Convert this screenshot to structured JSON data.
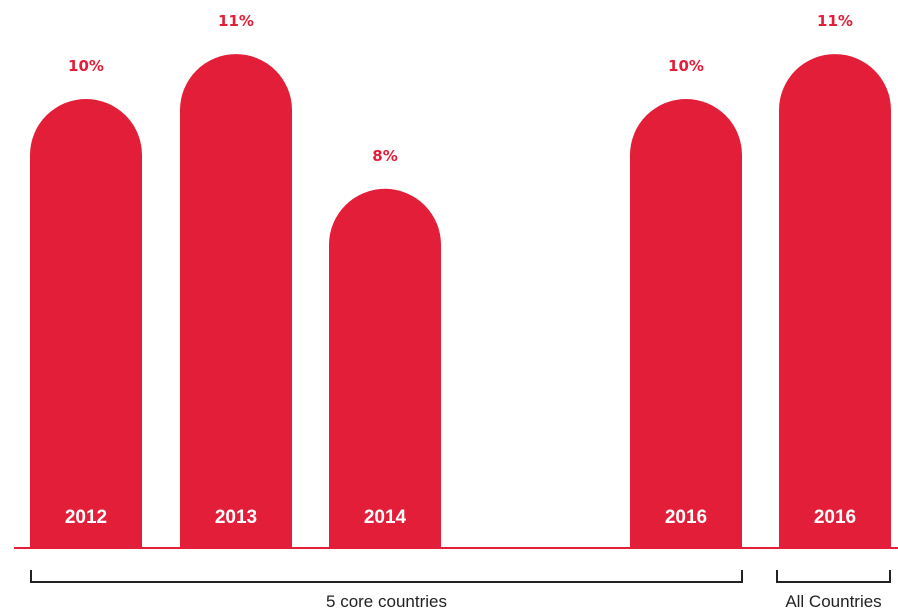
{
  "chart_data": {
    "type": "bar",
    "title": "",
    "xlabel": "",
    "ylabel": "",
    "ylim": [
      0,
      11.5
    ],
    "bar_color": "#e31e38",
    "value_label_color": "#e31e38",
    "axis_color": "#e31e38",
    "bars": [
      {
        "category": "2012",
        "value": 10,
        "value_label": "10%",
        "group": 0
      },
      {
        "category": "2013",
        "value": 11,
        "value_label": "11%",
        "group": 0
      },
      {
        "category": "2014",
        "value": 8,
        "value_label": "8%",
        "group": 0
      },
      {
        "category": "2016",
        "value": 10,
        "value_label": "10%",
        "group": 0
      },
      {
        "category": "2016",
        "value": 11,
        "value_label": "11%",
        "group": 1
      }
    ],
    "groups": [
      {
        "label": "5 core countries"
      },
      {
        "label": "All Countries"
      }
    ]
  }
}
